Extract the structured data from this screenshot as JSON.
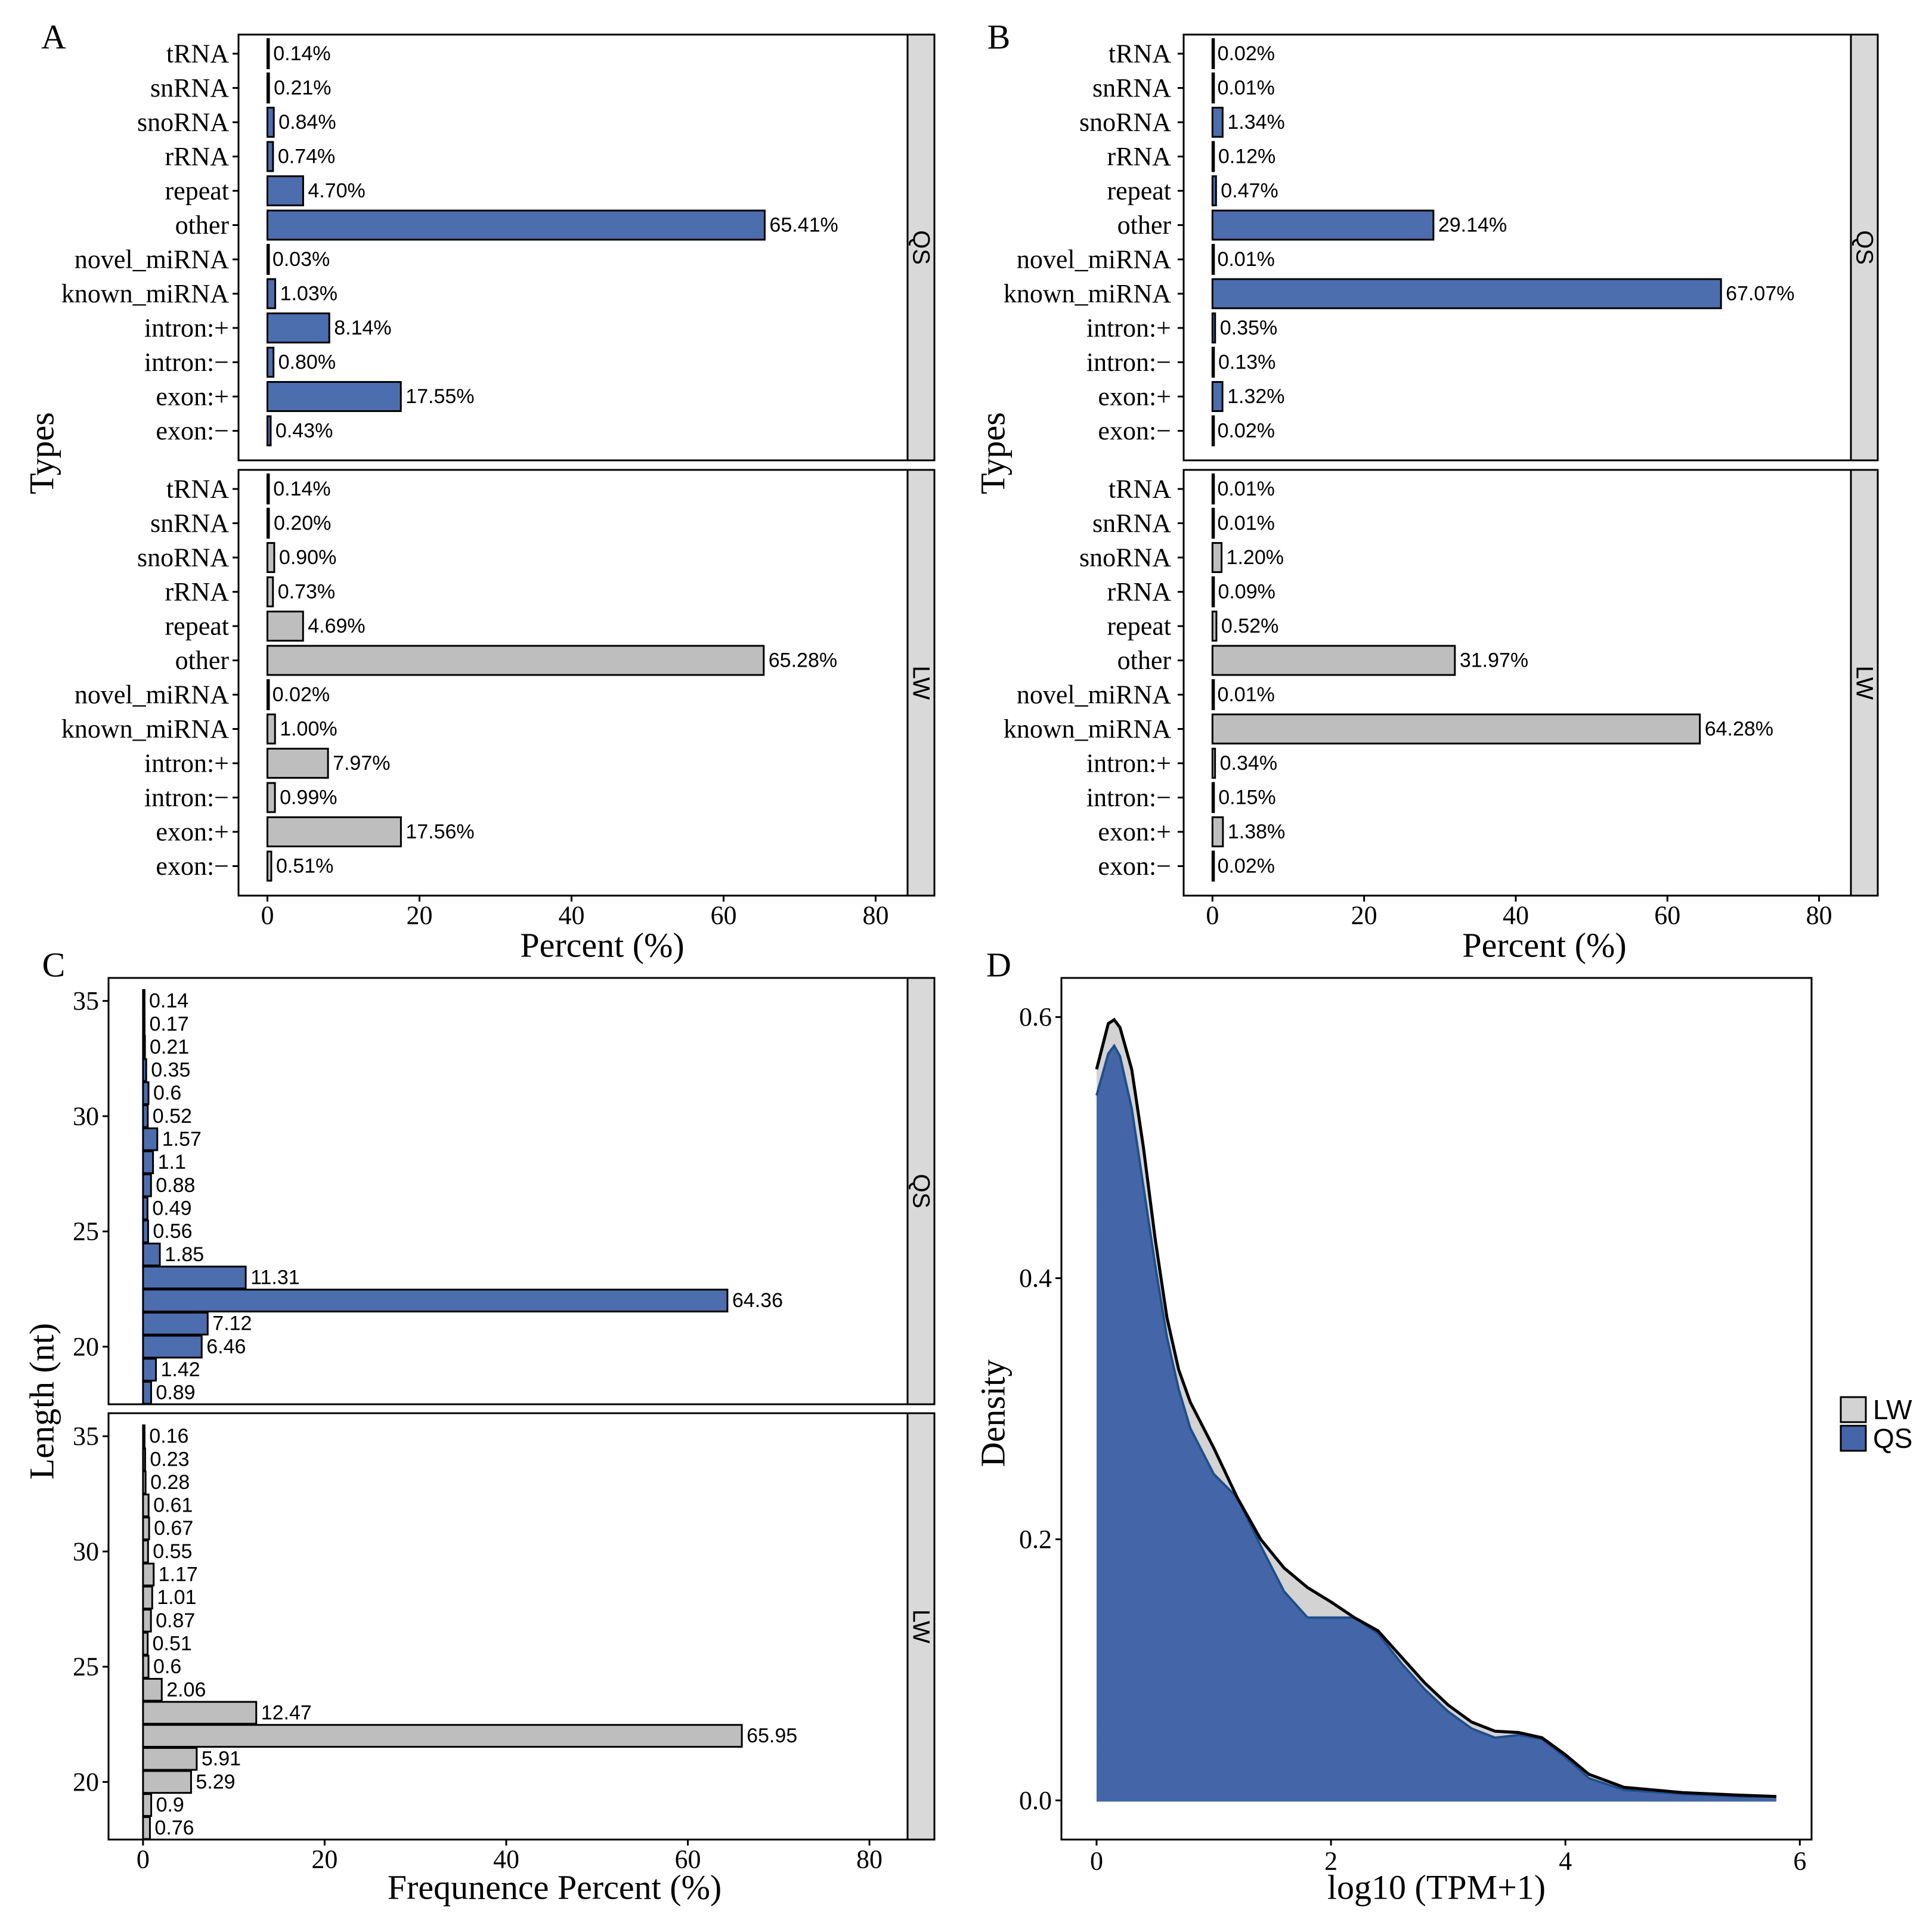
{
  "colors": {
    "qs_fill": "#4C6EAF",
    "lw_fill": "#BEBEBE",
    "density_qs": "#4466A8",
    "density_lw": "#D3D3D3",
    "strip_bg": "#D9D9D9",
    "outline": "#000000"
  },
  "chart_data": [
    {
      "panel": "A",
      "type": "bar",
      "orientation": "horizontal",
      "ylabel": "Types",
      "xlabel": "Percent (%)",
      "xlim": [
        0,
        84
      ],
      "xticks": [
        0,
        20,
        40,
        60,
        80
      ],
      "categories": [
        "tRNA",
        "snRNA",
        "snoRNA",
        "rRNA",
        "repeat",
        "other",
        "novel_miRNA",
        "known_miRNA",
        "intron:+",
        "intron:−",
        "exon:+",
        "exon:−"
      ],
      "series": [
        {
          "name": "QS",
          "values": [
            0.14,
            0.21,
            0.84,
            0.74,
            4.7,
            65.41,
            0.03,
            1.03,
            8.14,
            0.8,
            17.55,
            0.43
          ],
          "labels": [
            "0.14%",
            "0.21%",
            "0.84%",
            "0.74%",
            "4.70%",
            "65.41%",
            "0.03%",
            "1.03%",
            "8.14%",
            "0.80%",
            "17.55%",
            "0.43%"
          ]
        },
        {
          "name": "LW",
          "values": [
            0.14,
            0.2,
            0.9,
            0.73,
            4.69,
            65.28,
            0.02,
            1.0,
            7.97,
            0.99,
            17.56,
            0.51
          ],
          "labels": [
            "0.14%",
            "0.20%",
            "0.90%",
            "0.73%",
            "4.69%",
            "65.28%",
            "0.02%",
            "1.00%",
            "7.97%",
            "0.99%",
            "17.56%",
            "0.51%"
          ]
        }
      ]
    },
    {
      "panel": "B",
      "type": "bar",
      "orientation": "horizontal",
      "ylabel": "Types",
      "xlabel": "Percent (%)",
      "xlim": [
        0,
        84
      ],
      "xticks": [
        0,
        20,
        40,
        60,
        80
      ],
      "categories": [
        "tRNA",
        "snRNA",
        "snoRNA",
        "rRNA",
        "repeat",
        "other",
        "novel_miRNA",
        "known_miRNA",
        "intron:+",
        "intron:−",
        "exon:+",
        "exon:−"
      ],
      "series": [
        {
          "name": "QS",
          "values": [
            0.02,
            0.01,
            1.34,
            0.12,
            0.47,
            29.14,
            0.01,
            67.07,
            0.35,
            0.13,
            1.32,
            0.02
          ],
          "labels": [
            "0.02%",
            "0.01%",
            "1.34%",
            "0.12%",
            "0.47%",
            "29.14%",
            "0.01%",
            "67.07%",
            "0.35%",
            "0.13%",
            "1.32%",
            "0.02%"
          ]
        },
        {
          "name": "LW",
          "values": [
            0.01,
            0.01,
            1.2,
            0.09,
            0.52,
            31.97,
            0.01,
            64.28,
            0.34,
            0.15,
            1.38,
            0.02
          ],
          "labels": [
            "0.01%",
            "0.01%",
            "1.20%",
            "0.09%",
            "0.52%",
            "31.97%",
            "0.01%",
            "64.28%",
            "0.34%",
            "0.15%",
            "1.38%",
            "0.02%"
          ]
        }
      ]
    },
    {
      "panel": "C",
      "type": "bar",
      "orientation": "horizontal",
      "ylabel": "Length (nt)",
      "xlabel": "Frequnence Percent (%)",
      "xlim": [
        0,
        84
      ],
      "xticks": [
        0,
        20,
        40,
        60,
        80
      ],
      "ylim": [
        17.5,
        36
      ],
      "yticks": [
        20,
        25,
        30,
        35
      ],
      "lengths": [
        35,
        34,
        33,
        32,
        31,
        30,
        29,
        28,
        27,
        26,
        25,
        24,
        23,
        22,
        21,
        20,
        19,
        18
      ],
      "series": [
        {
          "name": "QS",
          "values": [
            0.14,
            0.17,
            0.21,
            0.35,
            0.6,
            0.52,
            1.57,
            1.1,
            0.88,
            0.49,
            0.56,
            1.85,
            11.31,
            64.36,
            7.12,
            6.46,
            1.42,
            0.89
          ],
          "labels": [
            "0.14",
            "0.17",
            "0.21",
            "0.35",
            "0.6",
            "0.52",
            "1.57",
            "1.1",
            "0.88",
            "0.49",
            "0.56",
            "1.85",
            "11.31",
            "64.36",
            "7.12",
            "6.46",
            "1.42",
            "0.89"
          ]
        },
        {
          "name": "LW",
          "values": [
            0.16,
            0.23,
            0.28,
            0.61,
            0.67,
            0.55,
            1.17,
            1.01,
            0.87,
            0.51,
            0.6,
            2.06,
            12.47,
            65.95,
            5.91,
            5.29,
            0.9,
            0.76
          ],
          "labels": [
            "0.16",
            "0.23",
            "0.28",
            "0.61",
            "0.67",
            "0.55",
            "1.17",
            "1.01",
            "0.87",
            "0.51",
            "0.6",
            "2.06",
            "12.47",
            "65.95",
            "5.91",
            "5.29",
            "0.9",
            "0.76"
          ]
        }
      ]
    },
    {
      "panel": "D",
      "type": "area",
      "ylabel": "Density",
      "xlabel": "log10 (TPM+1)",
      "xlim": [
        -0.3,
        6.1
      ],
      "ylim": [
        -0.03,
        0.63
      ],
      "xticks": [
        0,
        2,
        4,
        6
      ],
      "yticks": [
        0.0,
        0.2,
        0.4,
        0.6
      ],
      "ytick_labels": [
        "0.0",
        "0.2",
        "0.4",
        "0.6"
      ],
      "legend": {
        "position": "right",
        "entries": [
          "LW",
          "QS"
        ]
      },
      "series": [
        {
          "name": "LW",
          "x": [
            0,
            0.1,
            0.15,
            0.2,
            0.3,
            0.4,
            0.5,
            0.6,
            0.7,
            0.8,
            1.0,
            1.2,
            1.4,
            1.6,
            1.8,
            2.0,
            2.2,
            2.4,
            2.6,
            2.8,
            3.0,
            3.2,
            3.4,
            3.6,
            3.8,
            4.0,
            4.2,
            4.5,
            5.0,
            5.5,
            5.8
          ],
          "y": [
            0.56,
            0.595,
            0.598,
            0.592,
            0.56,
            0.5,
            0.43,
            0.37,
            0.33,
            0.305,
            0.27,
            0.232,
            0.2,
            0.178,
            0.163,
            0.152,
            0.14,
            0.13,
            0.11,
            0.09,
            0.073,
            0.06,
            0.053,
            0.052,
            0.048,
            0.035,
            0.02,
            0.01,
            0.006,
            0.004,
            0.003
          ]
        },
        {
          "name": "QS",
          "x": [
            0,
            0.1,
            0.15,
            0.2,
            0.3,
            0.4,
            0.5,
            0.6,
            0.7,
            0.8,
            1.0,
            1.2,
            1.4,
            1.6,
            1.8,
            2.0,
            2.2,
            2.4,
            2.6,
            2.8,
            3.0,
            3.2,
            3.4,
            3.6,
            3.8,
            4.0,
            4.2,
            4.5,
            5.0,
            5.5,
            5.8
          ],
          "y": [
            0.54,
            0.572,
            0.578,
            0.57,
            0.53,
            0.47,
            0.41,
            0.355,
            0.315,
            0.285,
            0.25,
            0.232,
            0.195,
            0.16,
            0.14,
            0.14,
            0.14,
            0.128,
            0.105,
            0.085,
            0.068,
            0.055,
            0.048,
            0.05,
            0.047,
            0.033,
            0.017,
            0.008,
            0.005,
            0.003,
            0.003
          ]
        }
      ]
    }
  ],
  "panel_letters": [
    "A",
    "B",
    "C",
    "D"
  ],
  "facet_strips": [
    "QS",
    "LW"
  ]
}
